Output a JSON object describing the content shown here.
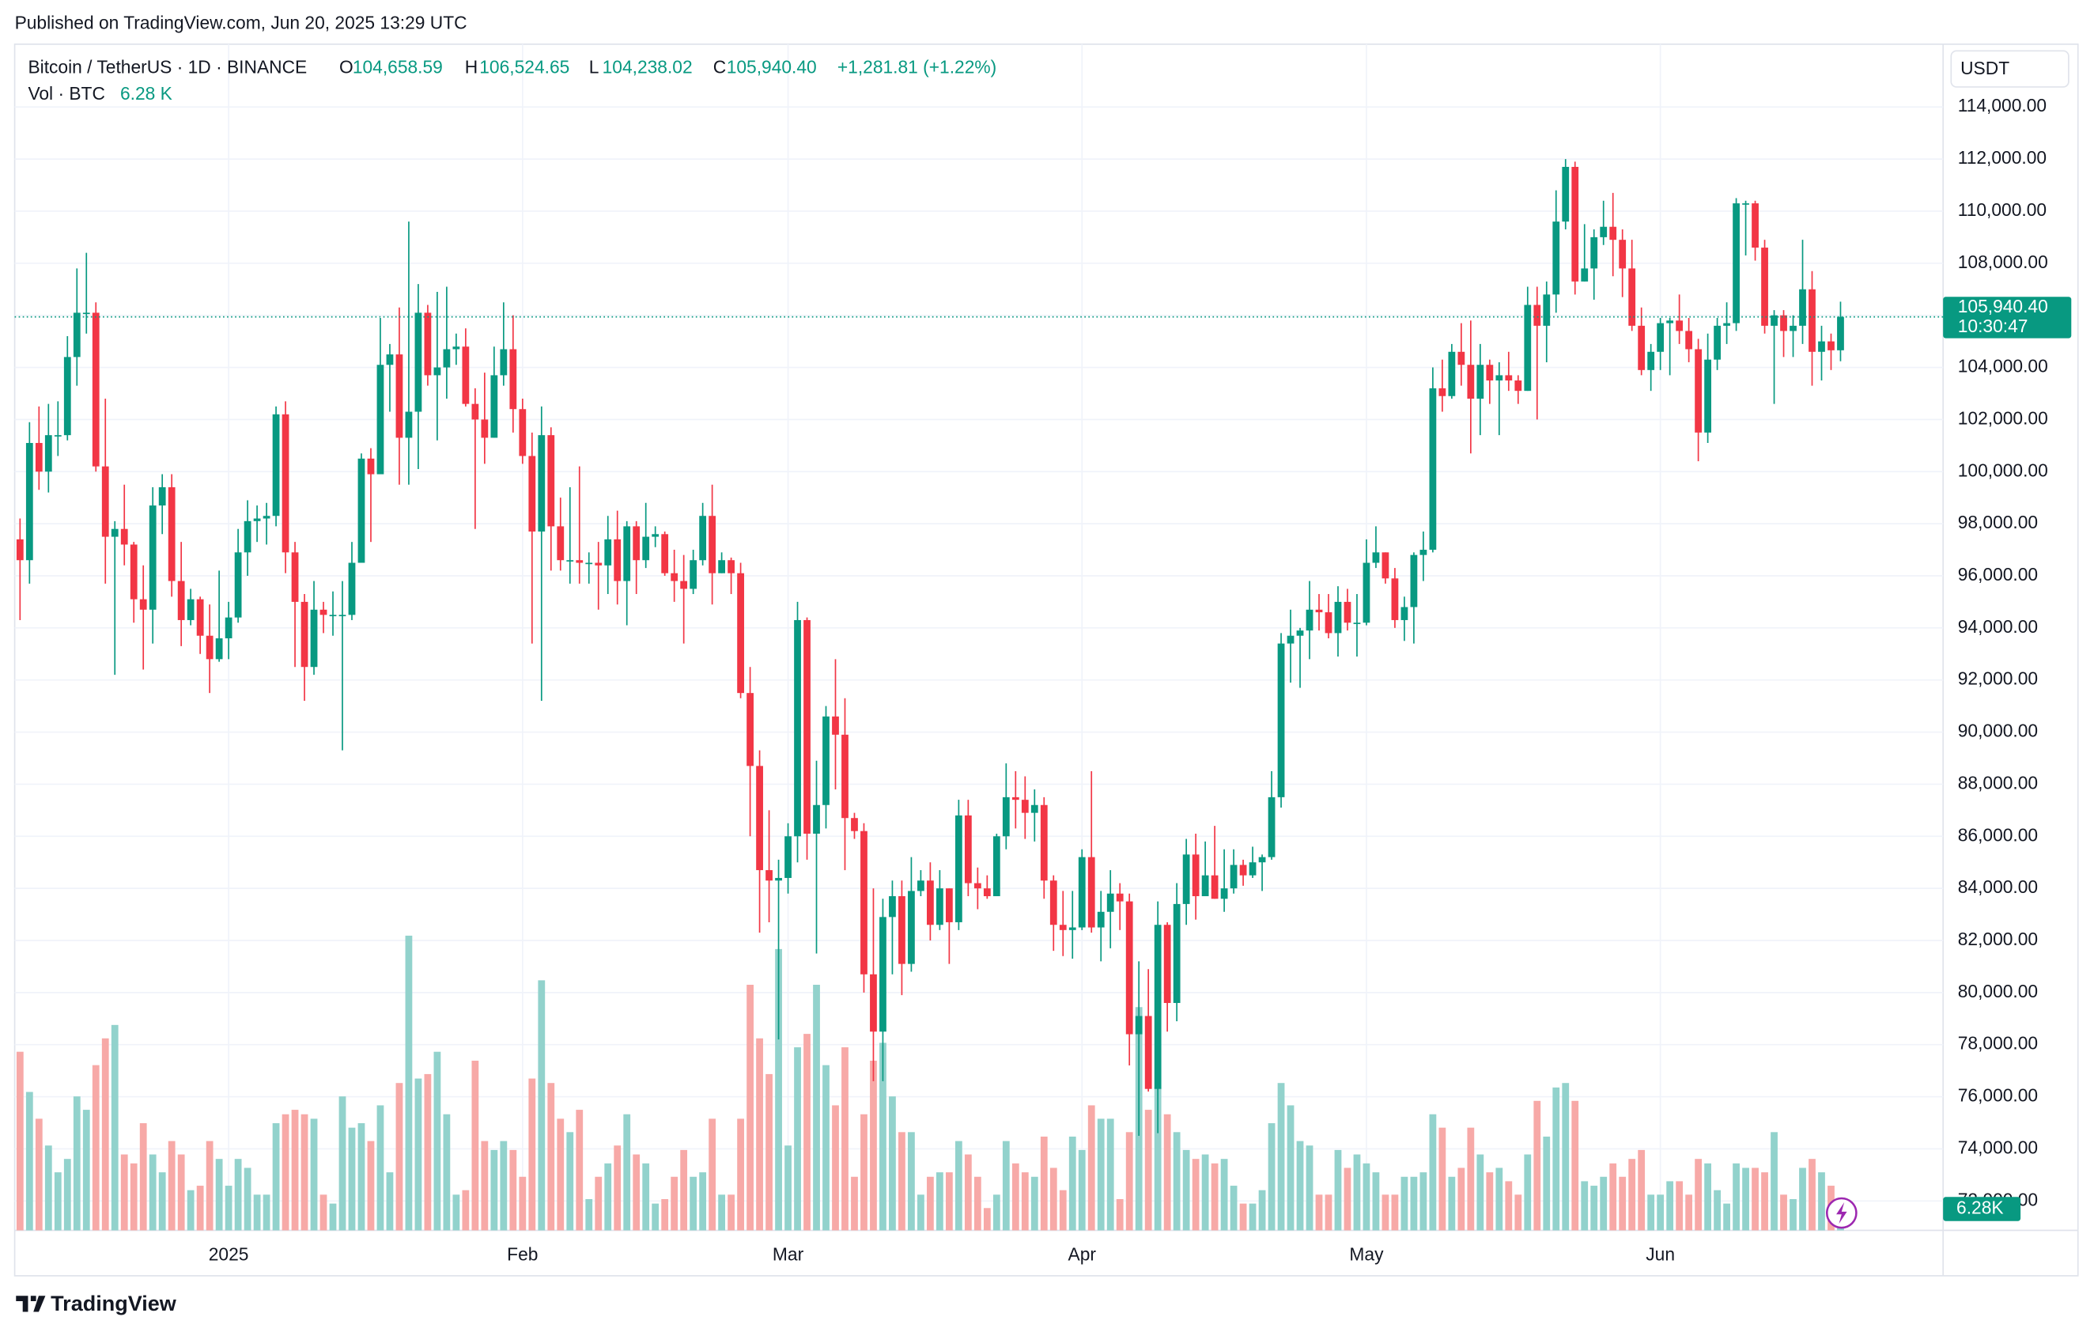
{
  "header": {
    "published": "Published on TradingView.com, Jun 20, 2025 13:29 UTC",
    "brand": "TradingView"
  },
  "chart_data": {
    "type": "candlestick",
    "title": "Bitcoin / TetherUS · 1D · BINANCE",
    "legend": {
      "open_label": "O",
      "open": "104,658.59",
      "high_label": "H",
      "high": "106,524.65",
      "low_label": "L",
      "low": "104,238.02",
      "close_label": "C",
      "close": "105,940.40",
      "change": "+1,281.81 (+1.22%)",
      "volume_title": "Vol · BTC",
      "volume": "6.28 K"
    },
    "price_axis_unit": "USDT",
    "last_price_label": "105,940.40",
    "countdown": "10:30:47",
    "volume_badge": "6.28K",
    "categories": [
      null,
      null,
      null,
      null,
      null,
      null,
      null,
      null,
      null,
      null,
      null,
      null,
      null,
      null,
      null,
      null,
      null,
      null,
      null,
      null,
      null,
      null,
      "2025",
      null,
      null,
      null,
      null,
      null,
      null,
      null,
      null,
      null,
      null,
      null,
      null,
      null,
      null,
      null,
      null,
      null,
      null,
      null,
      null,
      null,
      null,
      null,
      null,
      null,
      null,
      null,
      null,
      null,
      null,
      "Feb",
      null,
      null,
      null,
      null,
      null,
      null,
      null,
      null,
      null,
      null,
      null,
      null,
      null,
      null,
      null,
      null,
      null,
      null,
      null,
      null,
      null,
      null,
      null,
      null,
      null,
      null,
      null,
      "Mar",
      null,
      null,
      null,
      null,
      null,
      null,
      null,
      null,
      null,
      null,
      null,
      null,
      null,
      null,
      null,
      null,
      null,
      null,
      null,
      null,
      null,
      null,
      null,
      null,
      null,
      null,
      null,
      null,
      null,
      null,
      "Apr",
      null,
      null,
      null,
      null,
      null,
      null,
      null,
      null,
      null,
      null,
      null,
      null,
      null,
      null,
      null,
      null,
      null,
      null,
      null,
      null,
      null,
      null,
      null,
      null,
      null,
      null,
      null,
      null,
      null,
      "May",
      null,
      null,
      null,
      null,
      null,
      null,
      null,
      null,
      null,
      null,
      null,
      null,
      null,
      null,
      null,
      null,
      null,
      null,
      null,
      null,
      null,
      null,
      null,
      null,
      null,
      null,
      null,
      null,
      null,
      null,
      "Jun",
      null,
      null,
      null,
      null,
      null,
      null,
      null,
      null,
      null,
      null,
      null,
      null,
      null,
      null,
      null,
      null,
      null,
      null,
      null
    ],
    "open": [
      97400,
      96600,
      101100,
      100000,
      101400,
      101400,
      104400,
      106100,
      106100,
      100200,
      97500,
      97800,
      97200,
      95100,
      94700,
      98700,
      99400,
      95800,
      94300,
      95100,
      93700,
      92800,
      93600,
      94400,
      96900,
      98100,
      98200,
      98300,
      102200,
      96900,
      95000,
      92500,
      94700,
      94500,
      94500,
      94500,
      96500,
      100500,
      99900,
      104100,
      104500,
      101300,
      102300,
      106100,
      103700,
      104000,
      104700,
      104800,
      102600,
      102000,
      101300,
      103700,
      104700,
      102400,
      100600,
      97700,
      101400,
      97900,
      96600,
      96600,
      96500,
      96500,
      96400,
      97400,
      95800,
      97900,
      96600,
      97500,
      97600,
      96100,
      95800,
      95500,
      96600,
      98300,
      96100,
      96600,
      96100,
      91500,
      88700,
      84700,
      84300,
      84400,
      86000,
      94300,
      86100,
      87200,
      90600,
      89900,
      86700,
      86200,
      80700,
      78500,
      82900,
      83700,
      81100,
      83900,
      84300,
      82600,
      84000,
      82700,
      86800,
      84200,
      84000,
      83700,
      86000,
      87500,
      87400,
      86900,
      87200,
      84300,
      82600,
      82400,
      82500,
      85200,
      82500,
      83100,
      83800,
      83500,
      78400,
      79100,
      76300,
      82600,
      79600,
      83400,
      85300,
      83700,
      84500,
      83600,
      84000,
      84900,
      84500,
      85000,
      85200,
      87500,
      93400,
      93700,
      93900,
      94700,
      94600,
      93800,
      95000,
      94200,
      94200,
      96500,
      96900,
      95900,
      94300,
      94800,
      96800,
      97000,
      103200,
      102900,
      104600,
      104100,
      102800,
      104100,
      103500,
      103700,
      103500,
      103100,
      106400,
      105600,
      106800,
      109600,
      111700,
      107300,
      107800,
      109000,
      109400,
      108900,
      107800,
      105600,
      103900,
      104600,
      105700,
      105800,
      105400,
      104700,
      101500,
      104300,
      105600,
      105700,
      110300,
      110300,
      108600,
      105600,
      106000,
      105400,
      105600,
      107000,
      104600,
      105000,
      104658.59
    ],
    "high": [
      98200,
      101900,
      102500,
      102600,
      102700,
      105200,
      107800,
      108400,
      106500,
      102800,
      98100,
      99500,
      97300,
      96400,
      99400,
      99900,
      99900,
      97300,
      95500,
      95200,
      94900,
      96200,
      95000,
      97800,
      98900,
      98700,
      98800,
      102500,
      102700,
      97300,
      95300,
      95800,
      95000,
      95400,
      95800,
      97300,
      100700,
      100900,
      105900,
      104900,
      106300,
      109600,
      107200,
      106400,
      106900,
      107100,
      105300,
      105500,
      103200,
      103800,
      104800,
      106500,
      106000,
      102800,
      101500,
      102500,
      101700,
      99000,
      99400,
      100200,
      96900,
      97300,
      98300,
      98500,
      98100,
      98100,
      98800,
      97900,
      97700,
      97000,
      96800,
      97000,
      98800,
      99500,
      96900,
      96700,
      96500,
      92500,
      89300,
      87000,
      85100,
      86500,
      95000,
      94400,
      88900,
      91000,
      92800,
      91300,
      86900,
      86500,
      84000,
      83600,
      84300,
      84300,
      85200,
      84700,
      85000,
      84700,
      84000,
      87400,
      87400,
      84800,
      84500,
      86100,
      88800,
      88500,
      88300,
      87800,
      87500,
      84500,
      83900,
      83900,
      85500,
      88500,
      83900,
      84700,
      84200,
      83800,
      81200,
      80900,
      83500,
      82700,
      84200,
      85900,
      86100,
      85800,
      86400,
      85500,
      85500,
      85100,
      85600,
      85300,
      88500,
      93800,
      94700,
      94000,
      95800,
      95300,
      95300,
      95600,
      95500,
      95300,
      97400,
      97900,
      96900,
      96300,
      95200,
      96900,
      97700,
      104000,
      104300,
      104900,
      105700,
      105800,
      104900,
      104300,
      104200,
      104600,
      103700,
      107100,
      107100,
      107300,
      110800,
      112000,
      111900,
      109500,
      109300,
      110400,
      110700,
      109300,
      108900,
      106300,
      104900,
      105900,
      105900,
      106800,
      105900,
      105100,
      105300,
      105900,
      106500,
      110500,
      110400,
      110400,
      108900,
      106200,
      106200,
      106000,
      108900,
      107700,
      105600,
      105300,
      106524.65
    ],
    "low": [
      94300,
      95700,
      99300,
      99200,
      100600,
      101200,
      103300,
      105300,
      100000,
      95700,
      92200,
      96400,
      94200,
      92400,
      93400,
      97600,
      95200,
      93300,
      94100,
      93000,
      91500,
      92700,
      92800,
      94200,
      96000,
      97300,
      97200,
      97900,
      96100,
      92500,
      91200,
      92200,
      93800,
      93700,
      89300,
      94300,
      96500,
      97300,
      99900,
      102300,
      99500,
      99500,
      100100,
      103300,
      101200,
      102800,
      104100,
      102500,
      97800,
      100300,
      101300,
      103300,
      101500,
      100300,
      93400,
      91200,
      96200,
      96200,
      95700,
      95700,
      95700,
      94700,
      95300,
      94900,
      94100,
      95300,
      96300,
      97100,
      96000,
      95000,
      93400,
      95300,
      96400,
      94900,
      96100,
      95300,
      91300,
      86000,
      82300,
      82700,
      78200,
      83800,
      85000,
      85100,
      81500,
      86300,
      87800,
      84700,
      85900,
      80000,
      76600,
      76600,
      80700,
      79900,
      80800,
      83700,
      82000,
      82400,
      81100,
      82400,
      83700,
      83200,
      83600,
      83700,
      85500,
      86300,
      85900,
      85800,
      83600,
      81600,
      81400,
      81300,
      82400,
      82300,
      81200,
      81700,
      82400,
      77200,
      74500,
      76200,
      74600,
      78500,
      78900,
      82600,
      82800,
      83700,
      83600,
      83100,
      83800,
      84100,
      84400,
      83900,
      85100,
      87100,
      91900,
      91700,
      92800,
      93900,
      93600,
      92900,
      93900,
      92900,
      94100,
      96300,
      95700,
      94000,
      93500,
      93400,
      95800,
      96900,
      102300,
      102800,
      103300,
      100700,
      101400,
      102600,
      101400,
      103100,
      102600,
      103100,
      102000,
      104200,
      106100,
      109300,
      106800,
      107300,
      106600,
      108700,
      107500,
      106700,
      105400,
      103700,
      103100,
      103900,
      103700,
      104900,
      104200,
      100400,
      101100,
      103900,
      104900,
      105400,
      108300,
      108100,
      105300,
      102600,
      104400,
      104400,
      104900,
      103300,
      103500,
      103900,
      104238.02
    ],
    "close": [
      96600,
      101100,
      100000,
      101400,
      101400,
      104400,
      106100,
      106100,
      100200,
      97500,
      97800,
      97200,
      95100,
      94700,
      98700,
      99400,
      95800,
      94300,
      95100,
      93700,
      92800,
      93600,
      94400,
      96900,
      98100,
      98200,
      98300,
      102200,
      96900,
      95000,
      92500,
      94700,
      94500,
      94500,
      94500,
      96500,
      100500,
      99900,
      104100,
      104500,
      101300,
      102300,
      106100,
      103700,
      104000,
      104700,
      104800,
      102600,
      102000,
      101300,
      103700,
      104700,
      102400,
      100600,
      97700,
      101400,
      97900,
      96600,
      96600,
      96500,
      96500,
      96400,
      97400,
      95800,
      97900,
      96600,
      97500,
      97600,
      96100,
      95800,
      95500,
      96600,
      98300,
      96100,
      96600,
      96100,
      91500,
      88700,
      84700,
      84300,
      84400,
      86000,
      94300,
      86100,
      87200,
      90600,
      89900,
      86700,
      86200,
      80700,
      78500,
      82900,
      83700,
      81100,
      83900,
      84300,
      82600,
      84000,
      82700,
      86800,
      84200,
      84000,
      83700,
      86000,
      87500,
      87400,
      86900,
      87200,
      84300,
      82600,
      82400,
      82500,
      85200,
      82500,
      83100,
      83800,
      83500,
      78400,
      79100,
      76300,
      82600,
      79600,
      83400,
      85300,
      83700,
      84500,
      83600,
      84000,
      84900,
      84500,
      85000,
      85200,
      87500,
      93400,
      93700,
      93900,
      94700,
      94600,
      93800,
      95000,
      94200,
      94200,
      96500,
      96900,
      95900,
      94300,
      94800,
      96800,
      97000,
      103200,
      102900,
      104600,
      104100,
      102800,
      104100,
      103500,
      103700,
      103500,
      103100,
      106400,
      105600,
      106800,
      109600,
      111700,
      107300,
      107800,
      109000,
      109400,
      108900,
      107800,
      105600,
      103900,
      104600,
      105700,
      105800,
      105400,
      104700,
      101500,
      104300,
      105600,
      105700,
      110300,
      110300,
      108600,
      105600,
      106000,
      105400,
      105600,
      107000,
      104600,
      105000,
      104658.59,
      105940.4
    ],
    "volume": [
      40,
      31,
      25,
      19,
      13,
      16,
      30,
      27,
      37,
      43,
      46,
      17,
      15,
      24,
      17,
      13,
      20,
      17,
      9,
      10,
      20,
      16,
      10,
      16,
      14,
      8,
      8,
      24,
      26,
      27,
      26,
      25,
      8,
      6,
      30,
      23,
      24,
      20,
      28,
      13,
      33,
      66,
      34,
      35,
      40,
      26,
      8,
      9,
      38,
      20,
      18,
      20,
      18,
      12,
      34,
      56,
      33,
      25,
      22,
      27,
      7,
      12,
      15,
      19,
      26,
      17,
      15,
      6,
      7,
      12,
      18,
      12,
      13,
      25,
      8,
      8,
      25,
      55,
      43,
      35,
      63,
      19,
      41,
      44,
      55,
      37,
      28,
      41,
      12,
      26,
      38,
      42,
      30,
      22,
      22,
      8,
      12,
      13,
      13,
      20,
      17,
      12,
      5,
      8,
      20,
      15,
      13,
      12,
      21,
      14,
      9,
      21,
      18,
      28,
      25,
      25,
      7,
      22,
      50,
      27,
      32,
      26,
      22,
      18,
      16,
      17,
      15,
      16,
      10,
      6,
      6,
      9,
      24,
      33,
      28,
      20,
      19,
      8,
      8,
      18,
      14,
      17,
      15,
      13,
      8,
      8,
      12,
      12,
      13,
      26,
      23,
      12,
      14,
      23,
      17,
      13,
      14,
      11,
      8,
      17,
      29,
      21,
      32,
      33,
      29,
      11,
      10,
      12,
      15,
      12,
      16,
      18,
      8,
      8,
      11,
      11,
      8,
      16,
      15,
      9,
      6,
      15,
      14,
      14,
      13,
      22,
      8,
      7,
      14,
      16,
      13,
      10,
      6.28
    ],
    "up_color": "#089981",
    "down_color": "#f23645",
    "up_volume_color": "#92d2cc",
    "down_volume_color": "#f7a9a7",
    "ylim": [
      70870,
      116410
    ],
    "yticks": [
      {
        "value": 114000,
        "label": "114,000.00"
      },
      {
        "value": 112000,
        "label": "112,000.00"
      },
      {
        "value": 110000,
        "label": "110,000.00"
      },
      {
        "value": 108000,
        "label": "108,000.00"
      },
      {
        "value": 106000,
        "label": "106,000.00"
      },
      {
        "value": 104000,
        "label": "104,000.00"
      },
      {
        "value": 102000,
        "label": "102,000.00"
      },
      {
        "value": 100000,
        "label": "100,000.00"
      },
      {
        "value": 98000,
        "label": "98,000.00"
      },
      {
        "value": 96000,
        "label": "96,000.00"
      },
      {
        "value": 94000,
        "label": "94,000.00"
      },
      {
        "value": 92000,
        "label": "92,000.00"
      },
      {
        "value": 90000,
        "label": "90,000.00"
      },
      {
        "value": 88000,
        "label": "88,000.00"
      },
      {
        "value": 86000,
        "label": "86,000.00"
      },
      {
        "value": 84000,
        "label": "84,000.00"
      },
      {
        "value": 82000,
        "label": "82,000.00"
      },
      {
        "value": 80000,
        "label": "80,000.00"
      },
      {
        "value": 78000,
        "label": "78,000.00"
      },
      {
        "value": 76000,
        "label": "76,000.00"
      },
      {
        "value": 74000,
        "label": "74,000.00"
      },
      {
        "value": 72000,
        "label": "72,000.00"
      }
    ],
    "volume_ylim": [
      0,
      70
    ],
    "grid": true
  }
}
